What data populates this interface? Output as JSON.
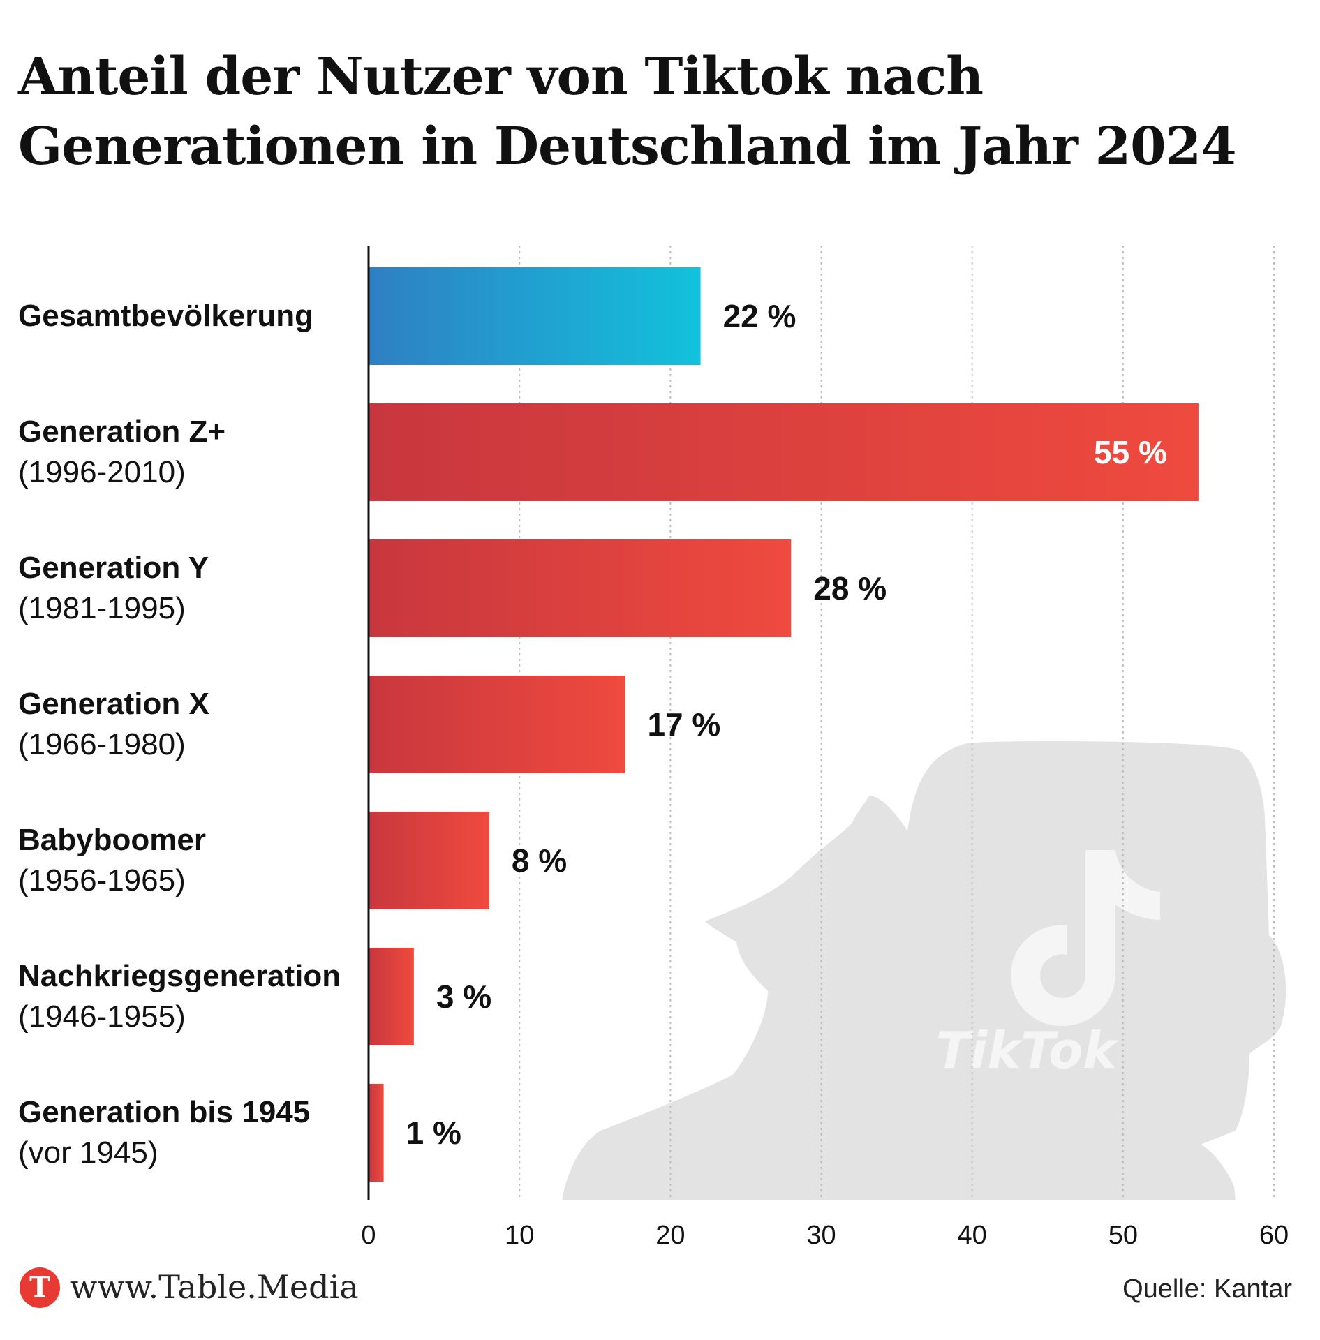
{
  "title": {
    "line1": "Anteil der Nutzer von Tiktok nach",
    "line2": "Generationen in Deutschland im Jahr 2024"
  },
  "chart_data": {
    "type": "bar",
    "orientation": "horizontal",
    "title": "Anteil der Nutzer von Tiktok nach Generationen in Deutschland im Jahr 2024",
    "categories": [
      {
        "name": "Gesamtbevölkerung",
        "range": ""
      },
      {
        "name": "Generation Z+",
        "range": "(1996-2010)"
      },
      {
        "name": "Generation Y",
        "range": "(1981-1995)"
      },
      {
        "name": "Generation X",
        "range": "(1966-1980)"
      },
      {
        "name": "Babyboomer",
        "range": "(1956-1965)"
      },
      {
        "name": "Nachkriegsgeneration",
        "range": "(1946-1955)"
      },
      {
        "name": "Generation bis 1945",
        "range": "(vor 1945)"
      }
    ],
    "values": [
      22,
      55,
      28,
      17,
      8,
      3,
      1
    ],
    "value_labels": [
      "22 %",
      "55 %",
      "28 %",
      "17 %",
      "8 %",
      "3 %",
      "1 %"
    ],
    "highlight_index": 0,
    "xlim": [
      0,
      60
    ],
    "xticks": [
      "0",
      "10",
      "20",
      "30",
      "40",
      "50",
      "60"
    ],
    "xlabel": "",
    "ylabel": "",
    "grid": true,
    "colors": {
      "highlight_start": "#2f7fc3",
      "highlight_end": "#12c2dc",
      "bar_start": "#c8373e",
      "bar_end": "#ef4a3e",
      "grid": "#bdbdbd",
      "watermark": "#e3e3e3"
    }
  },
  "watermark": {
    "text": "TikTok",
    "icon": "tiktok-note-icon"
  },
  "footer": {
    "logo_letter": "T",
    "url": "www.Table.Media",
    "source": "Quelle: Kantar"
  }
}
